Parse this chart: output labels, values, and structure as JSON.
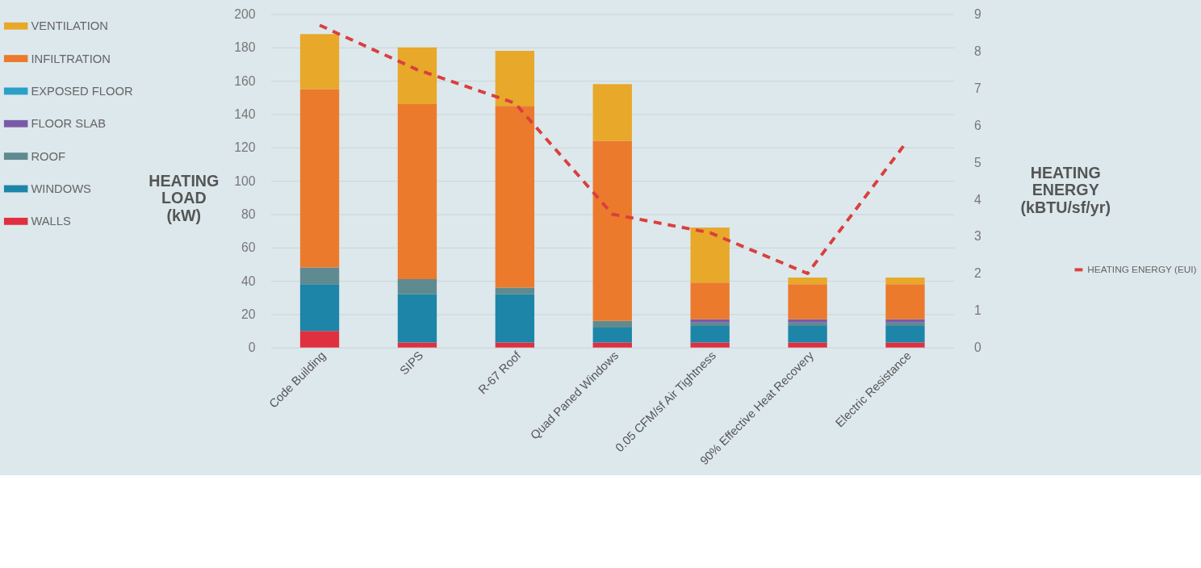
{
  "chart_data": {
    "type": "bar",
    "stacked": true,
    "ylabel": "HEATING LOAD (kW)",
    "y2label": "HEATING ENERGY (kBTU/sf/yr)",
    "categories": [
      "Code Building",
      "SIPS",
      "R-67 Roof",
      "Quad Paned Windows",
      "0.05 CFM/sf Air Tightness",
      "90% Effective Heat Recovery",
      "Electric Resistance"
    ],
    "series": [
      {
        "name": "WALLS",
        "color": "#e03040",
        "values": [
          10,
          3,
          3,
          3,
          3,
          3,
          3
        ]
      },
      {
        "name": "WINDOWS",
        "color": "#1d85a8",
        "values": [
          28,
          29,
          29,
          9,
          10,
          10,
          10
        ]
      },
      {
        "name": "ROOF",
        "color": "#5f8a90",
        "values": [
          10,
          9,
          4,
          4,
          2,
          2,
          2
        ]
      },
      {
        "name": "FLOOR SLAB",
        "color": "#7a5aa8",
        "values": [
          0,
          0,
          0,
          0,
          2,
          2,
          2
        ]
      },
      {
        "name": "EXPOSED FLOOR",
        "color": "#2aa0c8",
        "values": [
          0,
          0,
          0,
          0,
          0,
          0,
          0
        ]
      },
      {
        "name": "INFILTRATION",
        "color": "#ec7a2c",
        "values": [
          107,
          105,
          109,
          108,
          22,
          21,
          21
        ]
      },
      {
        "name": "VENTILATION",
        "color": "#e8a82a",
        "values": [
          33,
          34,
          33,
          34,
          33,
          4,
          4
        ]
      },
      {
        "name": "HEATING ENERGY (EUI)",
        "type": "line",
        "axis": "y2",
        "line_style": "dashed",
        "color": "#d9403f",
        "values": [
          8.7,
          7.5,
          6.6,
          3.6,
          3.1,
          2.0,
          5.5
        ]
      }
    ],
    "ylim": [
      0,
      200
    ],
    "yticks": [
      0,
      20,
      40,
      60,
      80,
      100,
      120,
      140,
      160,
      180,
      200
    ],
    "y2lim": [
      0,
      9
    ],
    "y2ticks": [
      0,
      1,
      2,
      3,
      4,
      5,
      6,
      7,
      8,
      9
    ],
    "grid": "y",
    "legend": "left"
  }
}
